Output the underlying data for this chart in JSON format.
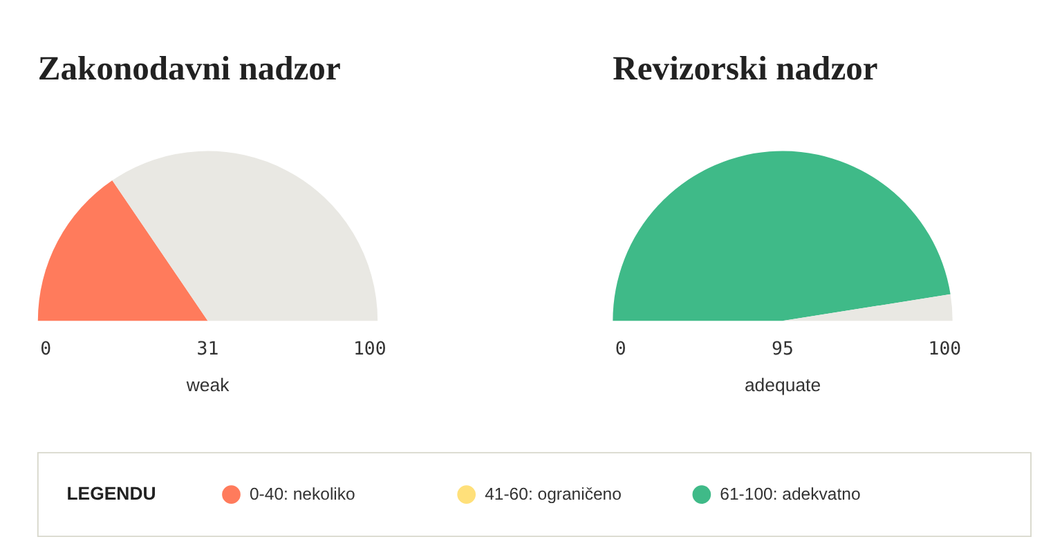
{
  "chart_data": [
    {
      "type": "pie",
      "title": "Zakonodavni nadzor",
      "categories": [
        null,
        null
      ],
      "values": [
        31,
        69
      ],
      "colors": [
        "#ff7b5c",
        "#e9e8e3"
      ],
      "annotations": [
        "0",
        "31",
        "100"
      ],
      "xlabel": "weak"
    },
    {
      "type": "pie",
      "title": "Revizorski nadzor",
      "categories": [
        null,
        null
      ],
      "values": [
        95,
        5
      ],
      "colors": [
        "#3fba88",
        "#e9e8e3"
      ],
      "annotations": [
        "0",
        "95",
        "100"
      ],
      "xlabel": "adequate"
    },
    {
      "type": "other",
      "legend_title": "LEGENDU",
      "categories": [
        "0-40: nekoliko",
        "41-60: ograničeno",
        "61-100: adekvatno"
      ],
      "colors": [
        "#ff7b5c",
        "#ffe07a",
        "#3fba88"
      ]
    }
  ]
}
